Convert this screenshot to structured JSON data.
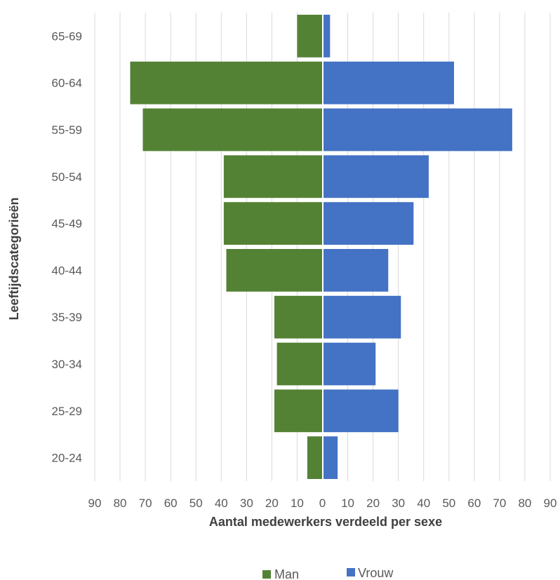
{
  "chart_data": {
    "type": "bar",
    "orientation": "horizontal",
    "subtype": "population-pyramid",
    "categories": [
      "20-24",
      "25-29",
      "30-34",
      "35-39",
      "40-44",
      "45-49",
      "50-54",
      "55-59",
      "60-64",
      "65-69"
    ],
    "series": [
      {
        "name": "Man",
        "color": "#548235",
        "side": "left",
        "values": [
          6,
          19,
          18,
          19,
          38,
          39,
          39,
          71,
          76,
          10
        ]
      },
      {
        "name": "Vrouw",
        "color": "#4472c4",
        "side": "right",
        "values": [
          6,
          30,
          21,
          31,
          26,
          36,
          42,
          75,
          52,
          3
        ]
      }
    ],
    "x_ticks": [
      "90",
      "80",
      "70",
      "60",
      "50",
      "40",
      "30",
      "20",
      "10",
      "0",
      "10",
      "20",
      "30",
      "40",
      "50",
      "60",
      "70",
      "80",
      "90"
    ],
    "xlim": [
      -90,
      90
    ],
    "xlabel": "Aantal medewerkers verdeeld per sexe",
    "ylabel": "Leeftijdscategorieën",
    "grid": "vertical",
    "legend": {
      "position": "bottom",
      "items": [
        "Man",
        "Vrouw"
      ]
    }
  }
}
